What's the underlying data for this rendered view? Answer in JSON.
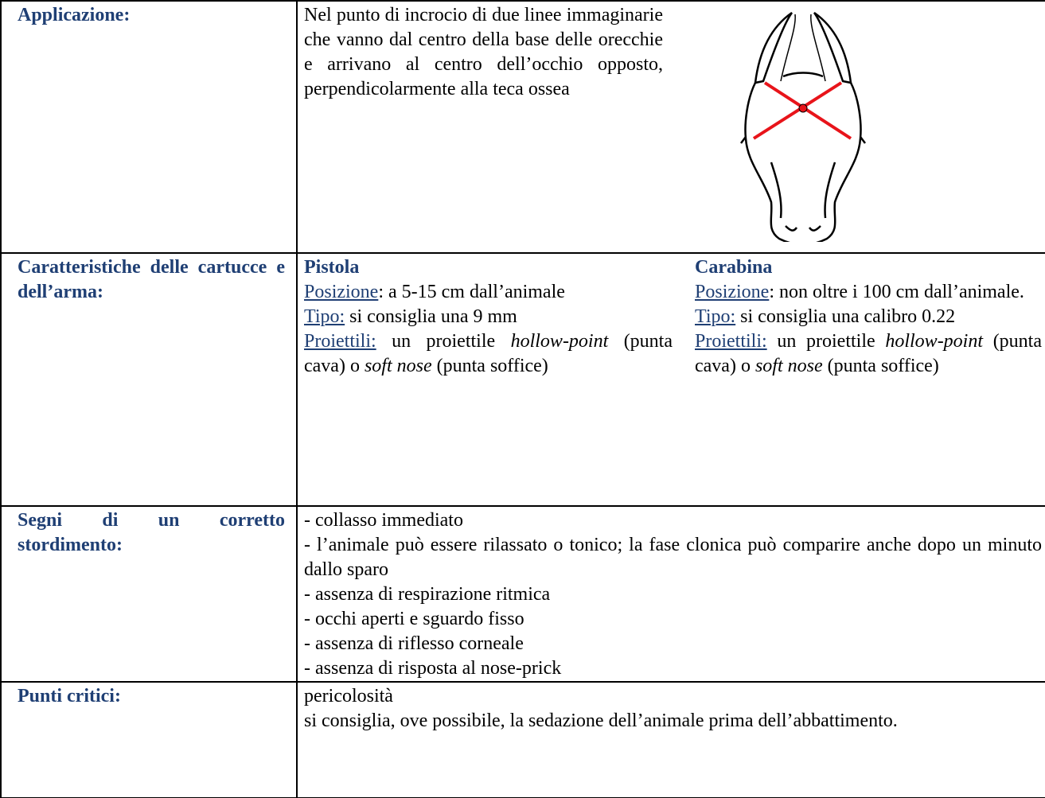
{
  "table": {
    "rows": [
      {
        "label": "Applicazione:",
        "text": "Nel punto di incrocio di due linee immaginarie che vanno dal centro della base delle orecchie e arrivano al centro dell’occhio opposto, perpendicolarmente alla teca ossea"
      },
      {
        "label": "Caratteristiche delle cartucce e dell’arma:",
        "columns": [
          {
            "heading": "Pistola",
            "items": [
              [
                {
                  "u": "Posizione"
                },
                ": a 5-15 cm dall’animale"
              ],
              [
                {
                  "u": "Tipo:"
                },
                " si consiglia una 9 mm"
              ],
              [
                {
                  "u": "Proiettili:"
                },
                " un proiettile ",
                {
                  "i": "hollow-point"
                },
                " (punta cava) o ",
                {
                  "i": "soft nose"
                },
                " (punta soffice)"
              ]
            ]
          },
          {
            "heading": "Carabina",
            "items": [
              [
                {
                  "u": "Posizione"
                },
                ": non oltre i 100 cm dall’animale."
              ],
              [
                {
                  "u": "Tipo:"
                },
                " si consiglia una calibro 0.22"
              ],
              [
                {
                  "u": "Proiettili:"
                },
                " un proiettile ",
                {
                  "i": "hollow-point"
                },
                " (punta cava) o ",
                {
                  "i": "soft nose"
                },
                " (punta soffice)"
              ]
            ]
          }
        ]
      },
      {
        "label": "Segni di un corretto stordimento:",
        "lines": [
          "- collasso  immediato",
          "- l’animale può essere rilassato o tonico; la fase clonica può comparire anche dopo un minuto dallo sparo",
          "- assenza di respirazione ritmica",
          "- occhi aperti e sguardo fisso",
          "- assenza di riflesso corneale",
          "- assenza di risposta al nose-prick"
        ]
      },
      {
        "label": "Punti critici:",
        "lines": [
          "pericolosità",
          "si consiglia, ove possibile, la sedazione  dell’animale prima dell’abbattimento."
        ]
      }
    ]
  }
}
